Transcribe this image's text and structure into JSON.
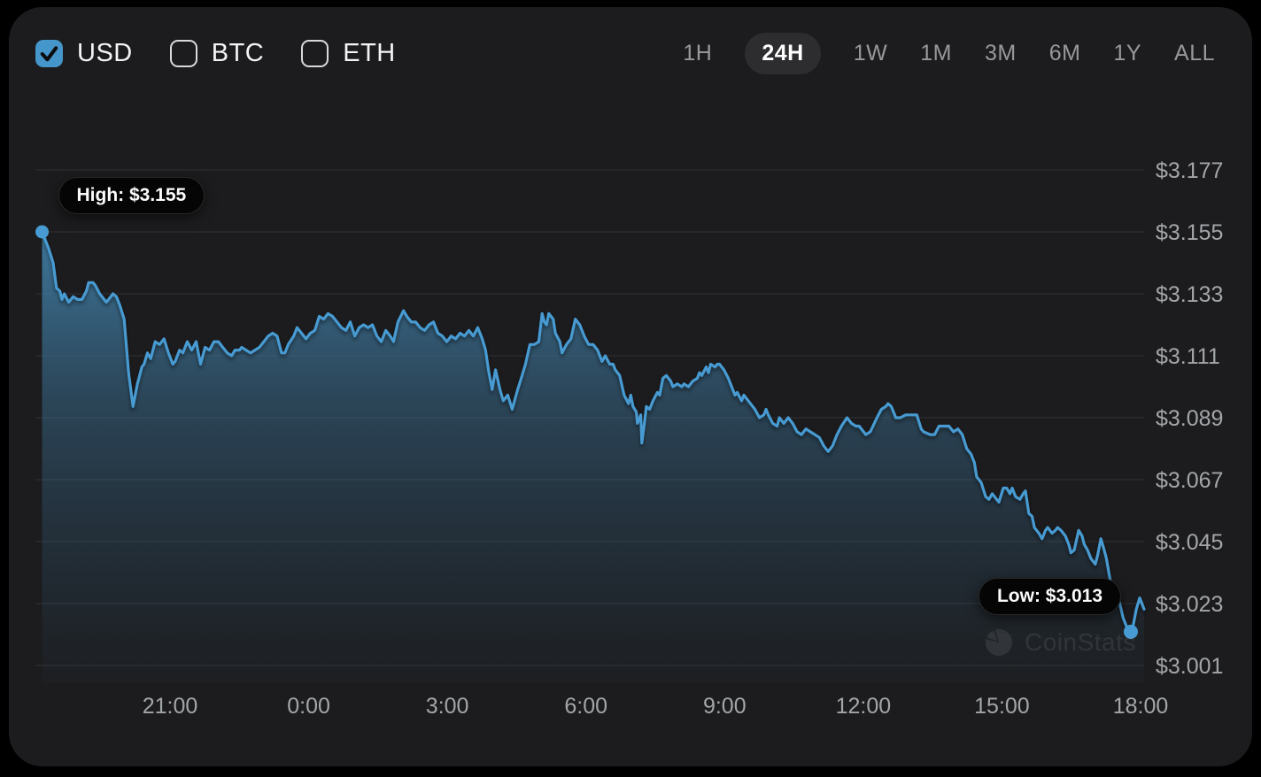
{
  "header": {
    "currency_options": [
      {
        "label": "USD",
        "checked": true
      },
      {
        "label": "BTC",
        "checked": false
      },
      {
        "label": "ETH",
        "checked": false
      }
    ],
    "time_ranges": [
      {
        "label": "1H",
        "selected": false
      },
      {
        "label": "24H",
        "selected": true
      },
      {
        "label": "1W",
        "selected": false
      },
      {
        "label": "1M",
        "selected": false
      },
      {
        "label": "3M",
        "selected": false
      },
      {
        "label": "6M",
        "selected": false
      },
      {
        "label": "1Y",
        "selected": false
      },
      {
        "label": "ALL",
        "selected": false
      }
    ]
  },
  "chart_annotations": {
    "high_label": "High: $3.155",
    "low_label": "Low: $3.013"
  },
  "watermark": {
    "text": "CoinStats"
  },
  "colors": {
    "accent_blue": "#479bd2",
    "checkbox_blue": "#4496cb",
    "card_bg": "#1c1c1e",
    "page_bg": "#000000",
    "tick_text": "#a3a6a9",
    "grid_line": "rgba(255,255,255,0.065)",
    "fill_top": "rgba(74,150,198,0.95)",
    "fill_mid": "rgba(58,110,145,0.50)",
    "fill_bottom": "rgba(45,80,105,0.05)"
  },
  "chart_data": {
    "type": "area",
    "title": "",
    "unit": "USD",
    "selected_range": "24H",
    "high": 3.155,
    "low": 3.013,
    "x_ticks": [
      "21:00",
      "0:00",
      "3:00",
      "6:00",
      "9:00",
      "12:00",
      "15:00",
      "18:00"
    ],
    "y_ticks": [
      "$3.177",
      "$3.155",
      "$3.133",
      "$3.111",
      "$3.089",
      "$3.067",
      "$3.045",
      "$3.023",
      "$3.001"
    ],
    "y_tick_values": [
      3.177,
      3.155,
      3.133,
      3.111,
      3.089,
      3.067,
      3.045,
      3.023,
      3.001
    ],
    "grid": true,
    "legend": false,
    "points": [
      [
        0.006,
        3.155
      ],
      [
        0.012,
        3.149
      ],
      [
        0.016,
        3.144
      ],
      [
        0.019,
        3.135
      ],
      [
        0.022,
        3.134
      ],
      [
        0.024,
        3.131
      ],
      [
        0.026,
        3.133
      ],
      [
        0.03,
        3.13
      ],
      [
        0.034,
        3.132
      ],
      [
        0.038,
        3.131
      ],
      [
        0.042,
        3.131
      ],
      [
        0.046,
        3.134
      ],
      [
        0.048,
        3.137
      ],
      [
        0.052,
        3.137
      ],
      [
        0.054,
        3.136
      ],
      [
        0.058,
        3.133
      ],
      [
        0.062,
        3.131
      ],
      [
        0.064,
        3.13
      ],
      [
        0.066,
        3.131
      ],
      [
        0.07,
        3.133
      ],
      [
        0.073,
        3.132
      ],
      [
        0.076,
        3.129
      ],
      [
        0.08,
        3.124
      ],
      [
        0.084,
        3.105
      ],
      [
        0.088,
        3.093
      ],
      [
        0.092,
        3.101
      ],
      [
        0.096,
        3.107
      ],
      [
        0.098,
        3.108
      ],
      [
        0.101,
        3.112
      ],
      [
        0.104,
        3.11
      ],
      [
        0.108,
        3.116
      ],
      [
        0.112,
        3.115
      ],
      [
        0.116,
        3.117
      ],
      [
        0.12,
        3.112
      ],
      [
        0.124,
        3.108
      ],
      [
        0.126,
        3.109
      ],
      [
        0.13,
        3.113
      ],
      [
        0.133,
        3.112
      ],
      [
        0.137,
        3.116
      ],
      [
        0.141,
        3.113
      ],
      [
        0.145,
        3.116
      ],
      [
        0.149,
        3.108
      ],
      [
        0.153,
        3.114
      ],
      [
        0.157,
        3.113
      ],
      [
        0.161,
        3.116
      ],
      [
        0.165,
        3.116
      ],
      [
        0.169,
        3.114
      ],
      [
        0.173,
        3.112
      ],
      [
        0.177,
        3.111
      ],
      [
        0.18,
        3.113
      ],
      [
        0.184,
        3.113
      ],
      [
        0.186,
        3.114
      ],
      [
        0.19,
        3.113
      ],
      [
        0.194,
        3.112
      ],
      [
        0.198,
        3.113
      ],
      [
        0.202,
        3.114
      ],
      [
        0.206,
        3.116
      ],
      [
        0.21,
        3.118
      ],
      [
        0.214,
        3.119
      ],
      [
        0.218,
        3.118
      ],
      [
        0.222,
        3.112
      ],
      [
        0.225,
        3.112
      ],
      [
        0.228,
        3.115
      ],
      [
        0.233,
        3.118
      ],
      [
        0.236,
        3.121
      ],
      [
        0.24,
        3.119
      ],
      [
        0.244,
        3.117
      ],
      [
        0.248,
        3.119
      ],
      [
        0.252,
        3.12
      ],
      [
        0.256,
        3.125
      ],
      [
        0.26,
        3.124
      ],
      [
        0.264,
        3.126
      ],
      [
        0.268,
        3.125
      ],
      [
        0.272,
        3.123
      ],
      [
        0.276,
        3.121
      ],
      [
        0.28,
        3.12
      ],
      [
        0.284,
        3.123
      ],
      [
        0.288,
        3.118
      ],
      [
        0.292,
        3.121
      ],
      [
        0.296,
        3.122
      ],
      [
        0.3,
        3.121
      ],
      [
        0.304,
        3.122
      ],
      [
        0.308,
        3.118
      ],
      [
        0.312,
        3.116
      ],
      [
        0.316,
        3.12
      ],
      [
        0.32,
        3.118
      ],
      [
        0.323,
        3.116
      ],
      [
        0.327,
        3.123
      ],
      [
        0.332,
        3.127
      ],
      [
        0.335,
        3.125
      ],
      [
        0.339,
        3.123
      ],
      [
        0.343,
        3.123
      ],
      [
        0.347,
        3.121
      ],
      [
        0.351,
        3.12
      ],
      [
        0.355,
        3.122
      ],
      [
        0.359,
        3.123
      ],
      [
        0.363,
        3.119
      ],
      [
        0.367,
        3.118
      ],
      [
        0.371,
        3.116
      ],
      [
        0.375,
        3.118
      ],
      [
        0.379,
        3.117
      ],
      [
        0.383,
        3.119
      ],
      [
        0.387,
        3.118
      ],
      [
        0.391,
        3.12
      ],
      [
        0.395,
        3.118
      ],
      [
        0.399,
        3.121
      ],
      [
        0.403,
        3.117
      ],
      [
        0.406,
        3.113
      ],
      [
        0.409,
        3.105
      ],
      [
        0.412,
        3.099
      ],
      [
        0.415,
        3.106
      ],
      [
        0.419,
        3.099
      ],
      [
        0.422,
        3.095
      ],
      [
        0.426,
        3.097
      ],
      [
        0.43,
        3.092
      ],
      [
        0.435,
        3.099
      ],
      [
        0.439,
        3.104
      ],
      [
        0.442,
        3.108
      ],
      [
        0.446,
        3.115
      ],
      [
        0.45,
        3.115
      ],
      [
        0.454,
        3.116
      ],
      [
        0.457,
        3.126
      ],
      [
        0.459,
        3.123
      ],
      [
        0.461,
        3.122
      ],
      [
        0.463,
        3.126
      ],
      [
        0.467,
        3.124
      ],
      [
        0.469,
        3.119
      ],
      [
        0.473,
        3.116
      ],
      [
        0.475,
        3.112
      ],
      [
        0.479,
        3.115
      ],
      [
        0.483,
        3.117
      ],
      [
        0.487,
        3.124
      ],
      [
        0.491,
        3.122
      ],
      [
        0.495,
        3.118
      ],
      [
        0.499,
        3.115
      ],
      [
        0.503,
        3.115
      ],
      [
        0.507,
        3.113
      ],
      [
        0.511,
        3.109
      ],
      [
        0.514,
        3.111
      ],
      [
        0.518,
        3.108
      ],
      [
        0.521,
        3.108
      ],
      [
        0.523,
        3.106
      ],
      [
        0.527,
        3.104
      ],
      [
        0.531,
        3.097
      ],
      [
        0.535,
        3.094
      ],
      [
        0.537,
        3.097
      ],
      [
        0.539,
        3.093
      ],
      [
        0.542,
        3.091
      ],
      [
        0.543,
        3.087
      ],
      [
        0.546,
        3.09
      ],
      [
        0.547,
        3.08
      ],
      [
        0.549,
        3.086
      ],
      [
        0.551,
        3.093
      ],
      [
        0.554,
        3.092
      ],
      [
        0.557,
        3.095
      ],
      [
        0.561,
        3.098
      ],
      [
        0.563,
        3.097
      ],
      [
        0.566,
        3.103
      ],
      [
        0.569,
        3.104
      ],
      [
        0.573,
        3.102
      ],
      [
        0.575,
        3.1
      ],
      [
        0.579,
        3.101
      ],
      [
        0.583,
        3.1
      ],
      [
        0.585,
        3.101
      ],
      [
        0.589,
        3.1
      ],
      [
        0.593,
        3.102
      ],
      [
        0.597,
        3.103
      ],
      [
        0.599,
        3.105
      ],
      [
        0.601,
        3.104
      ],
      [
        0.605,
        3.107
      ],
      [
        0.607,
        3.105
      ],
      [
        0.609,
        3.108
      ],
      [
        0.613,
        3.107
      ],
      [
        0.615,
        3.108
      ],
      [
        0.617,
        3.108
      ],
      [
        0.621,
        3.106
      ],
      [
        0.625,
        3.103
      ],
      [
        0.629,
        3.099
      ],
      [
        0.631,
        3.097
      ],
      [
        0.633,
        3.098
      ],
      [
        0.637,
        3.095
      ],
      [
        0.639,
        3.097
      ],
      [
        0.643,
        3.095
      ],
      [
        0.645,
        3.094
      ],
      [
        0.649,
        3.092
      ],
      [
        0.653,
        3.089
      ],
      [
        0.657,
        3.09
      ],
      [
        0.659,
        3.092
      ],
      [
        0.661,
        3.09
      ],
      [
        0.665,
        3.087
      ],
      [
        0.669,
        3.086
      ],
      [
        0.671,
        3.089
      ],
      [
        0.675,
        3.087
      ],
      [
        0.679,
        3.089
      ],
      [
        0.683,
        3.087
      ],
      [
        0.687,
        3.084
      ],
      [
        0.691,
        3.083
      ],
      [
        0.695,
        3.085
      ],
      [
        0.699,
        3.084
      ],
      [
        0.703,
        3.083
      ],
      [
        0.707,
        3.082
      ],
      [
        0.711,
        3.079
      ],
      [
        0.715,
        3.077
      ],
      [
        0.719,
        3.079
      ],
      [
        0.723,
        3.083
      ],
      [
        0.727,
        3.086
      ],
      [
        0.732,
        3.089
      ],
      [
        0.736,
        3.087
      ],
      [
        0.74,
        3.086
      ],
      [
        0.743,
        3.086
      ],
      [
        0.747,
        3.084
      ],
      [
        0.749,
        3.083
      ],
      [
        0.753,
        3.084
      ],
      [
        0.759,
        3.089
      ],
      [
        0.763,
        3.092
      ],
      [
        0.767,
        3.093
      ],
      [
        0.769,
        3.094
      ],
      [
        0.772,
        3.093
      ],
      [
        0.776,
        3.089
      ],
      [
        0.78,
        3.089
      ],
      [
        0.785,
        3.09
      ],
      [
        0.791,
        3.09
      ],
      [
        0.795,
        3.09
      ],
      [
        0.799,
        3.085
      ],
      [
        0.801,
        3.084
      ],
      [
        0.807,
        3.083
      ],
      [
        0.811,
        3.083
      ],
      [
        0.815,
        3.086
      ],
      [
        0.82,
        3.086
      ],
      [
        0.824,
        3.086
      ],
      [
        0.828,
        3.084
      ],
      [
        0.832,
        3.085
      ],
      [
        0.836,
        3.083
      ],
      [
        0.84,
        3.078
      ],
      [
        0.844,
        3.076
      ],
      [
        0.847,
        3.073
      ],
      [
        0.849,
        3.068
      ],
      [
        0.853,
        3.066
      ],
      [
        0.857,
        3.061
      ],
      [
        0.86,
        3.06
      ],
      [
        0.863,
        3.062
      ],
      [
        0.867,
        3.06
      ],
      [
        0.869,
        3.059
      ],
      [
        0.873,
        3.064
      ],
      [
        0.876,
        3.064
      ],
      [
        0.879,
        3.062
      ],
      [
        0.881,
        3.064
      ],
      [
        0.884,
        3.061
      ],
      [
        0.888,
        3.06
      ],
      [
        0.891,
        3.062
      ],
      [
        0.893,
        3.063
      ],
      [
        0.896,
        3.055
      ],
      [
        0.899,
        3.054
      ],
      [
        0.901,
        3.05
      ],
      [
        0.905,
        3.048
      ],
      [
        0.908,
        3.046
      ],
      [
        0.911,
        3.049
      ],
      [
        0.913,
        3.05
      ],
      [
        0.917,
        3.048
      ],
      [
        0.92,
        3.049
      ],
      [
        0.922,
        3.05
      ],
      [
        0.925,
        3.049
      ],
      [
        0.929,
        3.047
      ],
      [
        0.932,
        3.044
      ],
      [
        0.934,
        3.041
      ],
      [
        0.937,
        3.042
      ],
      [
        0.941,
        3.049
      ],
      [
        0.944,
        3.047
      ],
      [
        0.946,
        3.044
      ],
      [
        0.949,
        3.042
      ],
      [
        0.952,
        3.039
      ],
      [
        0.956,
        3.037
      ],
      [
        0.958,
        3.04
      ],
      [
        0.961,
        3.046
      ],
      [
        0.964,
        3.042
      ],
      [
        0.966,
        3.039
      ],
      [
        0.97,
        3.03
      ],
      [
        0.973,
        3.028
      ],
      [
        0.976,
        3.026
      ],
      [
        0.978,
        3.023
      ],
      [
        0.981,
        3.018
      ],
      [
        0.985,
        3.014
      ],
      [
        0.988,
        3.013
      ],
      [
        0.99,
        3.015
      ],
      [
        0.993,
        3.021
      ],
      [
        0.996,
        3.025
      ],
      [
        0.998,
        3.023
      ],
      [
        1.0,
        3.021
      ]
    ]
  }
}
